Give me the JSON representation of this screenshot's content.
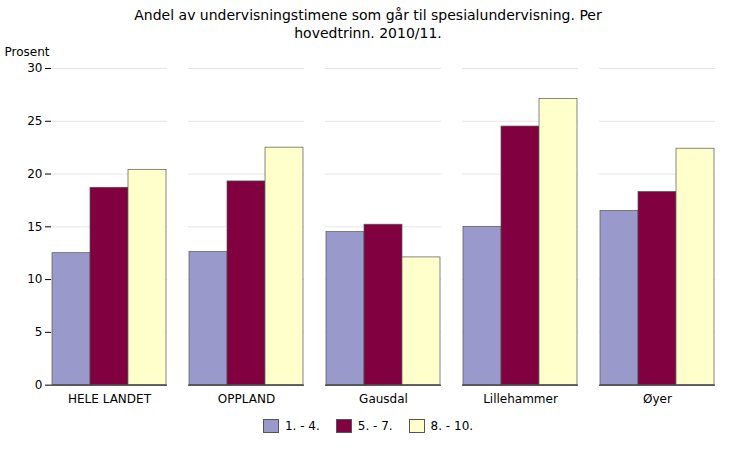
{
  "chart_data": {
    "type": "bar",
    "title": "Andel av undervisningstimene som går til spesialundervisning. Per\nhovedtrinn. 2010/11.",
    "categories": [
      "HELE LANDET",
      "OPPLAND",
      "Gausdal",
      "Lillehammer",
      "Øyer"
    ],
    "series": [
      {
        "name": "1. - 4.",
        "color": "#9999CC",
        "values": [
          12.5,
          12.6,
          14.5,
          15.0,
          16.5
        ]
      },
      {
        "name": "5. - 7.",
        "color": "#800040",
        "values": [
          18.7,
          19.3,
          15.2,
          24.5,
          18.3
        ]
      },
      {
        "name": "8. - 10.",
        "color": "#FFFFCC",
        "values": [
          20.4,
          22.5,
          12.1,
          27.1,
          22.4
        ]
      }
    ],
    "ylabel": "Prosent",
    "ylim": [
      0,
      30
    ],
    "yticks": [
      0,
      5,
      10,
      15,
      20,
      25,
      30
    ],
    "grid": true,
    "legend": "bottom"
  }
}
